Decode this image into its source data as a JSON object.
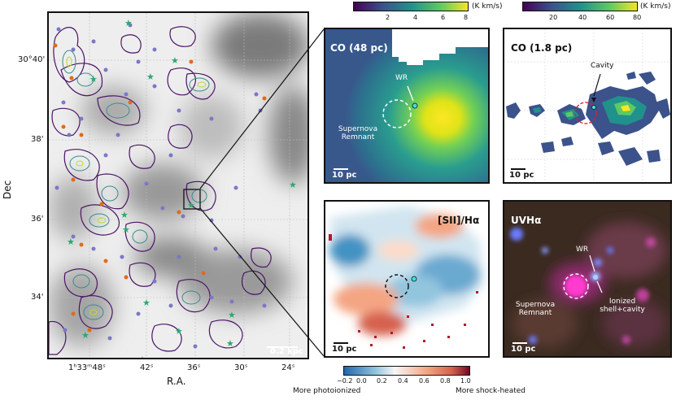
{
  "main": {
    "ylabel": "Dec",
    "xlabel": "R.A.",
    "yticks": [
      "30°40'",
      "38'",
      "36'",
      "34'"
    ],
    "xticks": [
      "1ʰ33ᵐ48ˢ",
      "42ˢ",
      "36ˢ",
      "30ˢ",
      "24ˢ"
    ],
    "scalebar": "0.2 kpc"
  },
  "co48": {
    "title": "CO (48 pc)",
    "wr": "WR",
    "snr": "Supernova\nRemnant",
    "scalebar": "10 pc"
  },
  "co18": {
    "title": "CO (1.8 pc)",
    "cavity": "Cavity",
    "scalebar": "10 pc"
  },
  "sii": {
    "title": "[SII]/Hα",
    "scalebar": "10 pc"
  },
  "uvha": {
    "title": "UVHα",
    "wr": "WR",
    "snr": "Supernova\nRemnant",
    "shell": "Ionized\nshell+cavity",
    "scalebar": "10 pc"
  },
  "cbar_co48": {
    "unit": "(K km/s)",
    "ticks": [
      "2",
      "4",
      "6",
      "8"
    ]
  },
  "cbar_co18": {
    "unit": "(K km/s)",
    "ticks": [
      "20",
      "40",
      "60",
      "80"
    ]
  },
  "cbar_sii": {
    "ticks": [
      "−0.2",
      "0.0",
      "0.2",
      "0.4",
      "0.6",
      "0.8",
      "1.0"
    ],
    "left_label": "More photoionized",
    "right_label": "More shock-heated"
  },
  "colors": {
    "viridis_low": "#440154",
    "viridis_high": "#fde725",
    "rdbu_low": "#2166ac",
    "rdbu_high": "#67001f"
  }
}
